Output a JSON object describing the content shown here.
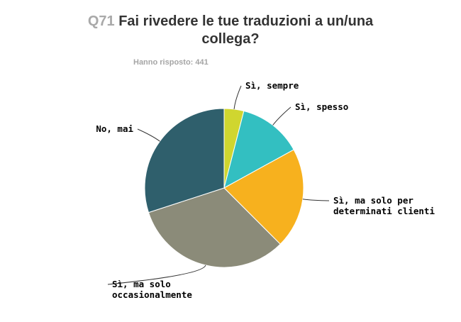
{
  "header": {
    "question_number": "Q71",
    "title_line1": "Fai rivedere le tue traduzioni a un/una",
    "title_line2": "collega?"
  },
  "responses_label": "Hanno risposto: 441",
  "chart_data": {
    "type": "pie",
    "title": "Q71 Fai rivedere le tue traduzioni a un/una collega?",
    "subtitle": "Hanno risposto: 441",
    "start": "top, clockwise",
    "slices": [
      {
        "label": [
          "Sì, sempre"
        ],
        "value": 4.0,
        "color": "#d0d62f"
      },
      {
        "label": [
          "Sì, spesso"
        ],
        "value": 13.0,
        "color": "#33bfc1"
      },
      {
        "label": [
          "Sì, ma solo per",
          "determinati clienti"
        ],
        "value": 20.5,
        "color": "#f7b11e"
      },
      {
        "label": [
          "Sì, ma solo",
          "occasionalmente"
        ],
        "value": 32.5,
        "color": "#8b8b79"
      },
      {
        "label": [
          "No, mai"
        ],
        "value": 30.0,
        "color": "#2f5f6c"
      }
    ]
  }
}
